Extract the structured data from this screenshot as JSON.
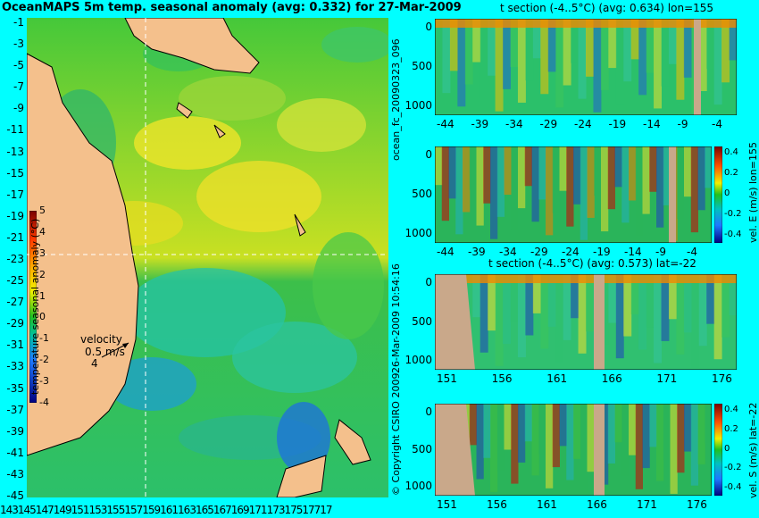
{
  "map": {
    "title": "OceanMAPS 5m temp. seasonal anomaly (avg: 0.332) for 27-Mar-2009",
    "y_ticks": [
      "-1",
      "-3",
      "-5",
      "-7",
      "-9",
      "-11",
      "-13",
      "-15",
      "-17",
      "-19",
      "-21",
      "-23",
      "-25",
      "-27",
      "-29",
      "-31",
      "-33",
      "-35",
      "-37",
      "-39",
      "-41",
      "-43",
      "-45"
    ],
    "x_ticks_text": "14314514714915115315515715916116316516716917117317517717",
    "colorbar": {
      "label": "temperature seasonal anomaly (°C)",
      "ticks": [
        "5",
        "4",
        "3",
        "2",
        "1",
        "0",
        "-1",
        "-2",
        "-3",
        "-4"
      ]
    },
    "velocity_legend": {
      "title": "velocity",
      "speed": "0.5 m/s",
      "value": "4"
    },
    "colors": {
      "land": "#f4c08c",
      "sea_base": "#2bbd2b",
      "contour": "#00e8ff"
    }
  },
  "panels": [
    {
      "title": "t section (-4..5°C) (avg: 0.634) lon=155",
      "y_ticks": [
        "0",
        "500",
        "1000"
      ],
      "x_ticks": [
        "-44",
        "-39",
        "-34",
        "-29",
        "-24",
        "-19",
        "-14",
        "-9",
        "-4"
      ]
    },
    {
      "title": "",
      "y_ticks": [
        "0",
        "500",
        "1000"
      ],
      "x_ticks": [
        "-44",
        "-39",
        "-34",
        "-29",
        "-24",
        "-19",
        "-14",
        "-9",
        "-4"
      ],
      "colorbar_label": "vel. E (m/s) lon=155",
      "colorbar_ticks": [
        "0.4",
        "0.2",
        "0",
        "-0.2",
        "-0.4"
      ]
    },
    {
      "title": "t section (-4..5°C) (avg: 0.573) lat=-22",
      "y_ticks": [
        "0",
        "500",
        "1000"
      ],
      "x_ticks": [
        "151",
        "156",
        "161",
        "166",
        "171",
        "176"
      ]
    },
    {
      "title": "",
      "y_ticks": [
        "0",
        "500",
        "1000"
      ],
      "x_ticks": [
        "151",
        "156",
        "161",
        "166",
        "171",
        "176"
      ],
      "colorbar_label": "vel. S (m/s) lat=-22",
      "colorbar_ticks": [
        "0.4",
        "0.2",
        "0",
        "-0.2",
        "-0.4"
      ]
    }
  ],
  "side_labels": {
    "forecast_id": "ocean_fc_20090323_096",
    "timestamp": "26-Mar-2009 10:54:16",
    "copyright": "© Copyright CSIRO 2009"
  }
}
